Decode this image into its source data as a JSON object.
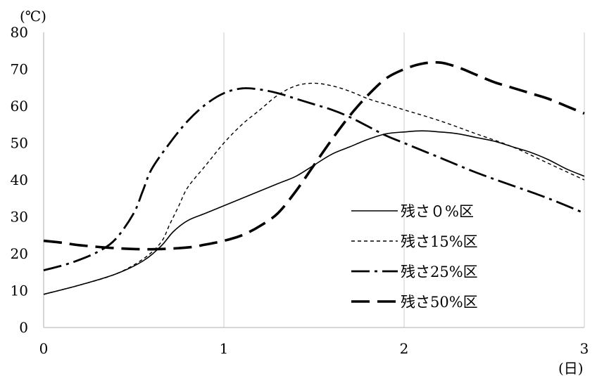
{
  "chart_data": {
    "type": "line",
    "ylabel": "(℃)",
    "xlabel": "(日)",
    "xlim": [
      0,
      3
    ],
    "ylim": [
      0,
      80
    ],
    "x_ticks": [
      "0",
      "1",
      "2",
      "3"
    ],
    "y_ticks": [
      "0",
      "10",
      "20",
      "30",
      "40",
      "50",
      "60",
      "70",
      "80"
    ],
    "grid": "vertical",
    "legend_position": "bottom-right",
    "series": [
      {
        "name": "残さ０%区",
        "style": "solid",
        "points": [
          [
            0,
            9
          ],
          [
            0.2,
            11.5
          ],
          [
            0.4,
            14.5
          ],
          [
            0.55,
            18
          ],
          [
            0.65,
            22
          ],
          [
            0.72,
            26
          ],
          [
            0.8,
            29
          ],
          [
            0.9,
            31
          ],
          [
            1.0,
            33
          ],
          [
            1.1,
            35
          ],
          [
            1.2,
            37
          ],
          [
            1.3,
            39
          ],
          [
            1.4,
            41
          ],
          [
            1.5,
            44
          ],
          [
            1.6,
            47
          ],
          [
            1.7,
            49
          ],
          [
            1.8,
            51
          ],
          [
            1.9,
            52.5
          ],
          [
            2.0,
            53
          ],
          [
            2.1,
            53.3
          ],
          [
            2.2,
            53
          ],
          [
            2.3,
            52.5
          ],
          [
            2.4,
            51.5
          ],
          [
            2.5,
            50.5
          ],
          [
            2.6,
            49
          ],
          [
            2.7,
            47.5
          ],
          [
            2.8,
            45.5
          ],
          [
            2.9,
            43
          ],
          [
            3.0,
            41
          ]
        ]
      },
      {
        "name": "残さ15%区",
        "style": "dotted",
        "points": [
          [
            0,
            9
          ],
          [
            0.2,
            11.5
          ],
          [
            0.4,
            14.5
          ],
          [
            0.55,
            18.5
          ],
          [
            0.65,
            23
          ],
          [
            0.7,
            28
          ],
          [
            0.75,
            33
          ],
          [
            0.8,
            38
          ],
          [
            0.9,
            44
          ],
          [
            1.0,
            50
          ],
          [
            1.1,
            55
          ],
          [
            1.2,
            59
          ],
          [
            1.3,
            63
          ],
          [
            1.4,
            65.5
          ],
          [
            1.5,
            66.2
          ],
          [
            1.6,
            65.5
          ],
          [
            1.7,
            64
          ],
          [
            1.8,
            62
          ],
          [
            1.9,
            60.5
          ],
          [
            2.0,
            59
          ],
          [
            2.2,
            56
          ],
          [
            2.4,
            52.5
          ],
          [
            2.6,
            49
          ],
          [
            2.8,
            44.5
          ],
          [
            3.0,
            40
          ]
        ]
      },
      {
        "name": "残さ25%区",
        "style": "dash-dot",
        "points": [
          [
            0,
            15.5
          ],
          [
            0.15,
            17.5
          ],
          [
            0.3,
            20.5
          ],
          [
            0.4,
            24
          ],
          [
            0.5,
            31
          ],
          [
            0.55,
            37
          ],
          [
            0.6,
            43
          ],
          [
            0.7,
            50
          ],
          [
            0.8,
            56
          ],
          [
            0.9,
            60.5
          ],
          [
            1.0,
            63.5
          ],
          [
            1.1,
            64.8
          ],
          [
            1.2,
            64.5
          ],
          [
            1.3,
            63.5
          ],
          [
            1.4,
            62
          ],
          [
            1.5,
            60.5
          ],
          [
            1.6,
            59
          ],
          [
            1.7,
            57
          ],
          [
            1.8,
            54.5
          ],
          [
            1.9,
            52
          ],
          [
            2.0,
            50
          ],
          [
            2.2,
            46
          ],
          [
            2.4,
            42
          ],
          [
            2.6,
            38.5
          ],
          [
            2.8,
            35
          ],
          [
            3.0,
            31
          ]
        ]
      },
      {
        "name": "残さ50%区",
        "style": "long-dash",
        "points": [
          [
            0,
            23.5
          ],
          [
            0.1,
            23
          ],
          [
            0.2,
            22.3
          ],
          [
            0.4,
            21.5
          ],
          [
            0.6,
            21.2
          ],
          [
            0.8,
            21.7
          ],
          [
            0.9,
            22.5
          ],
          [
            1.0,
            23.5
          ],
          [
            1.1,
            25
          ],
          [
            1.2,
            27.5
          ],
          [
            1.3,
            31
          ],
          [
            1.4,
            37
          ],
          [
            1.5,
            44
          ],
          [
            1.6,
            51
          ],
          [
            1.7,
            57.5
          ],
          [
            1.8,
            63
          ],
          [
            1.9,
            67.5
          ],
          [
            2.0,
            70
          ],
          [
            2.1,
            71.5
          ],
          [
            2.2,
            71.8
          ],
          [
            2.3,
            70.5
          ],
          [
            2.4,
            68.5
          ],
          [
            2.5,
            66.5
          ],
          [
            2.6,
            65
          ],
          [
            2.7,
            63.5
          ],
          [
            2.8,
            62
          ],
          [
            2.9,
            60
          ],
          [
            3.0,
            58
          ]
        ]
      }
    ]
  }
}
